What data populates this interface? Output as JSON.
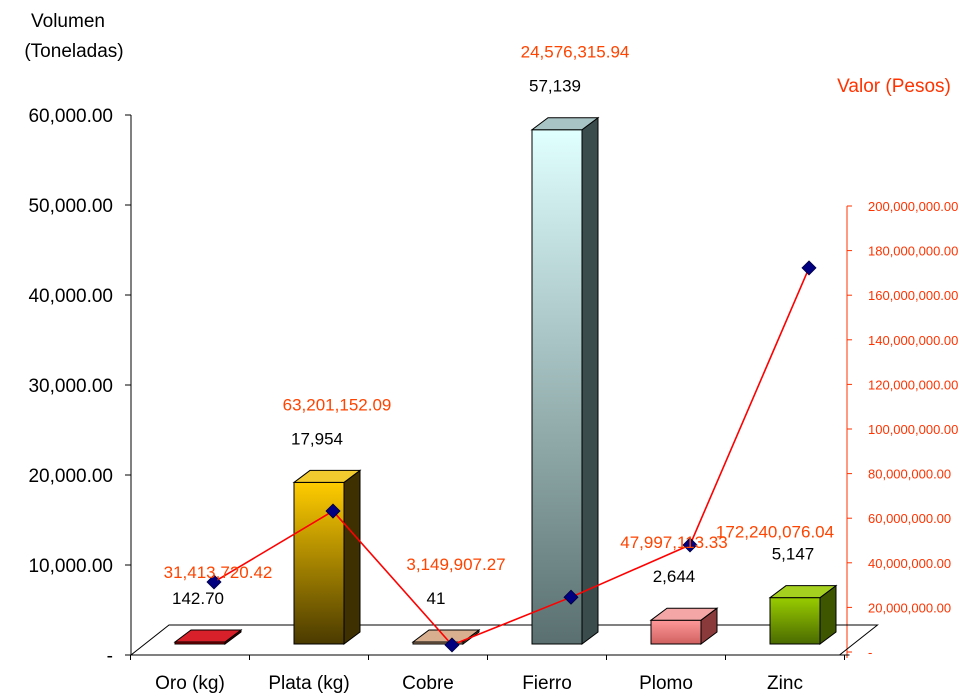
{
  "chart_data": {
    "type": "bar",
    "title": "",
    "ylabel_left": [
      "Volumen",
      "(Toneladas)"
    ],
    "ylabel_right": "Valor (Pesos)",
    "categories": [
      "Oro (kg)",
      "Plata (kg)",
      "Cobre",
      "Fierro",
      "Plomo",
      "Zinc"
    ],
    "y_left": {
      "ticks": [
        0,
        10000,
        20000,
        30000,
        40000,
        50000,
        60000
      ],
      "tick_labels": [
        "-",
        "10,000.00",
        "20,000.00",
        "30,000.00",
        "40,000.00",
        "50,000.00",
        "60,000.00"
      ],
      "ylim": [
        0,
        60000
      ]
    },
    "y_right": {
      "ticks": [
        0,
        20000000,
        40000000,
        60000000,
        80000000,
        100000000,
        120000000,
        140000000,
        160000000,
        180000000,
        200000000
      ],
      "tick_labels": [
        "-",
        "20,000,000.00",
        "40,000,000.00",
        "60,000,000.00",
        "80,000,000.00",
        "100,000,000.00",
        "120,000,000.00",
        "140,000,000.00",
        "160,000,000.00",
        "180,000,000.00",
        "200,000,000.00"
      ],
      "ylim": [
        0,
        200000000
      ]
    },
    "series": [
      {
        "type": "bar",
        "axis": "left",
        "values": [
          142.7,
          17954,
          41,
          57139,
          2644,
          5147
        ],
        "labels": [
          "142.70",
          "17,954",
          "41",
          "57,139",
          "2,644",
          "5,147"
        ],
        "colors": [
          {
            "top": "#d8202a",
            "front_top": "#c00000",
            "front_bottom": "#8a0000",
            "side": "#5a0000"
          },
          {
            "top": "#f2cc2e",
            "front_top": "#ffcc00",
            "front_bottom": "#4a3a00",
            "side": "#3e3000"
          },
          {
            "top": "#d8b090",
            "front_top": "#c8a080",
            "front_bottom": "#8a6a50",
            "side": "#6e5030"
          },
          {
            "top": "#a8c4c4",
            "front_top": "#e0ffff",
            "front_bottom": "#5a7070",
            "side": "#3a4c4c"
          },
          {
            "top": "#f4a6a6",
            "front_top": "#ff9999",
            "front_bottom": "#d06060",
            "side": "#8a3a3a"
          },
          {
            "top": "#a6d020",
            "front_top": "#99cc00",
            "front_bottom": "#4a6a00",
            "side": "#3e5600"
          }
        ]
      },
      {
        "type": "line",
        "axis": "right",
        "values": [
          31413720.42,
          63201152.09,
          3149907.27,
          24576315.94,
          47997113.33,
          172240076.04
        ],
        "labels": [
          "31,413,720.42",
          "63,201,152.09",
          "3,149,907.27",
          "24,576,315.94",
          "47,997,113.33",
          "172,240,076.04"
        ],
        "line_color": "#ff0000",
        "marker_color": "#000080"
      }
    ],
    "colors": {
      "left_axis_text": "#000000",
      "right_axis_text": "#ff3300",
      "value_label": "#ff4400",
      "axis_line": "#000000",
      "floor": "#000000"
    }
  }
}
